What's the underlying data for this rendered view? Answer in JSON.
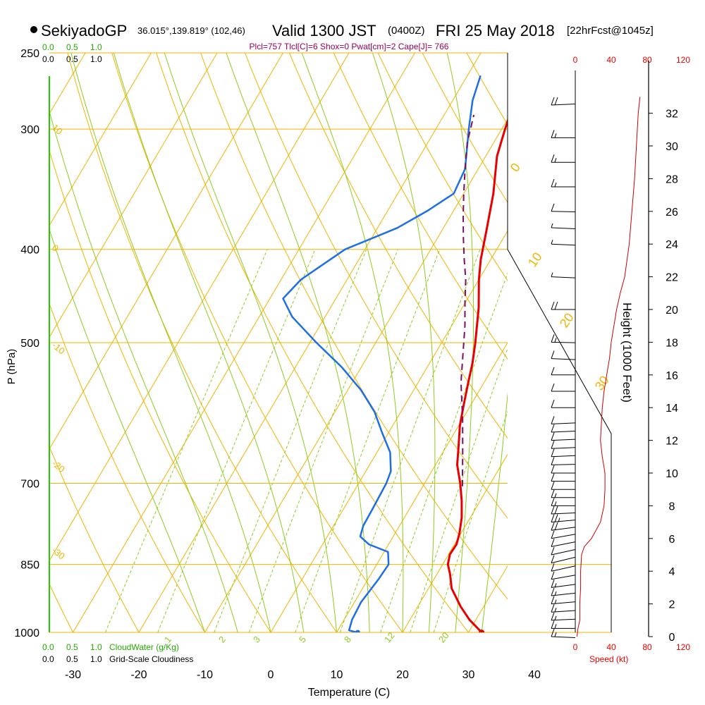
{
  "header": {
    "station": "SekiyadoGP",
    "coords": "36.015°,139.819° (102,46)",
    "valid_prefix": "Valid 1300 JST",
    "valid_utc": "(0400Z)",
    "valid_date": "FRI 25 May 2018",
    "forecast": "[22hrFcst@1045z]",
    "params": "Plcl=757 Tlcl[C]=6 Shox=0 Pwat[cm]=2 Cape[J]= 766"
  },
  "scales": {
    "cloudwater_ticks": [
      "0.0",
      "0.5",
      "1.0"
    ],
    "cloudiness_ticks": [
      "0.0",
      "0.5",
      "1.0"
    ],
    "cloudwater_label": "CloudWater (g/Kg)",
    "cloudiness_label": "Grid-Scale Cloudiness",
    "speed_ticks": [
      "0",
      "40",
      "80",
      "120"
    ],
    "speed_label": "Speed (kt)"
  },
  "colors": {
    "isotherm": "#f0b400",
    "dry_adiabat": "#f0b400",
    "moist_adiabat": "#8ccc1e",
    "mixing_ratio": "#8ccc1e",
    "temperature": "#e80000",
    "dewpoint": "#1e6ee6",
    "parcel": "#7a1060",
    "wind_speed": "#cc0000",
    "green_text": "#22aa00",
    "maroon_text": "#990055",
    "red_text": "#ee0000"
  },
  "chart_data": {
    "type": "line",
    "xlabel": "Temperature (C)",
    "ylabel": "P (hPa)",
    "y2label": "Height (1000 Feet)",
    "x_ticks": [
      "-30",
      "-20",
      "-10",
      "0",
      "10",
      "20",
      "30",
      "40"
    ],
    "pressure_levels": [
      "250",
      "300",
      "400",
      "500",
      "700",
      "850",
      "1000"
    ],
    "height_ticks": [
      "0",
      "2",
      "4",
      "6",
      "8",
      "10",
      "12",
      "14",
      "16",
      "18",
      "20",
      "22",
      "24",
      "26",
      "28",
      "30",
      "32"
    ],
    "dry_adiabat_labels": [
      "10",
      "0",
      "-10",
      "-20",
      "-30"
    ],
    "moist_adiabat_labels": [
      "0",
      "10",
      "20",
      "30"
    ],
    "mixing_ratio_labels": [
      "1",
      "2",
      "3",
      "5",
      "8",
      "12",
      "20"
    ],
    "series": [
      {
        "kind": "temperature",
        "points": [
          [
            32,
            1000
          ],
          [
            31,
            990
          ],
          [
            29,
            970
          ],
          [
            26.5,
            940
          ],
          [
            23.5,
            900
          ],
          [
            22,
            870
          ],
          [
            20.8,
            850
          ],
          [
            20.2,
            830
          ],
          [
            20.3,
            810
          ],
          [
            19.8,
            790
          ],
          [
            18.7,
            760
          ],
          [
            17.2,
            730
          ],
          [
            15.4,
            700
          ],
          [
            13.3,
            670
          ],
          [
            11.8,
            640
          ],
          [
            10.2,
            610
          ],
          [
            8.9,
            580
          ],
          [
            7.6,
            550
          ],
          [
            6.5,
            525
          ],
          [
            5.1,
            500
          ],
          [
            2.5,
            460
          ],
          [
            0,
            430
          ],
          [
            -1.5,
            410
          ],
          [
            -3.4,
            380
          ],
          [
            -5.5,
            350
          ],
          [
            -8.3,
            320
          ],
          [
            -9.5,
            300
          ],
          [
            -10.6,
            280
          ],
          [
            -10.8,
            264
          ]
        ]
      },
      {
        "kind": "dewpoint",
        "points": [
          [
            13,
            1000
          ],
          [
            11.7,
            995
          ],
          [
            11.2,
            970
          ],
          [
            11,
            930
          ],
          [
            11.6,
            880
          ],
          [
            11.8,
            850
          ],
          [
            10.6,
            825
          ],
          [
            7,
            810
          ],
          [
            5,
            795
          ],
          [
            4.5,
            775
          ],
          [
            4.4,
            745
          ],
          [
            4.2,
            700
          ],
          [
            3.8,
            680
          ],
          [
            2,
            650
          ],
          [
            -1,
            620
          ],
          [
            -4,
            590
          ],
          [
            -8,
            560
          ],
          [
            -13,
            530
          ],
          [
            -19,
            500
          ],
          [
            -25,
            470
          ],
          [
            -28,
            450
          ],
          [
            -27,
            430
          ],
          [
            -23,
            400
          ],
          [
            -17,
            380
          ],
          [
            -14,
            365
          ],
          [
            -11.5,
            350
          ],
          [
            -12,
            330
          ],
          [
            -15,
            300
          ],
          [
            -17,
            280
          ],
          [
            -18,
            264
          ]
        ]
      },
      {
        "kind": "parcel",
        "points": [
          [
            16,
            705
          ],
          [
            13,
            650
          ],
          [
            10,
            600
          ],
          [
            6.5,
            550
          ],
          [
            4,
            510
          ],
          [
            2,
            480
          ],
          [
            0,
            455
          ],
          [
            -2,
            430
          ],
          [
            -4,
            410
          ],
          [
            -6,
            390
          ],
          [
            -8,
            370
          ],
          [
            -10,
            350
          ],
          [
            -12,
            330
          ],
          [
            -13,
            320
          ],
          [
            -14,
            310
          ],
          [
            -15.5,
            290
          ]
        ]
      }
    ],
    "surface_temp_marker": [
      32,
      1000
    ],
    "surface_dewpoint_marker": [
      13.2,
      1000
    ],
    "winds": [
      {
        "h": 0,
        "dir": 90,
        "spd": 15
      },
      {
        "h": 0.5,
        "dir": 100,
        "spd": 15
      },
      {
        "h": 1,
        "dir": 110,
        "spd": 15
      },
      {
        "h": 1.5,
        "dir": 115,
        "spd": 15
      },
      {
        "h": 2,
        "dir": 120,
        "spd": 15
      },
      {
        "h": 2.5,
        "dir": 125,
        "spd": 15
      },
      {
        "h": 3,
        "dir": 130,
        "spd": 15
      },
      {
        "h": 3.5,
        "dir": 140,
        "spd": 10
      },
      {
        "h": 4,
        "dir": 150,
        "spd": 10
      },
      {
        "h": 4.5,
        "dir": 155,
        "spd": 10
      },
      {
        "h": 5,
        "dir": 150,
        "spd": 10
      },
      {
        "h": 5.5,
        "dir": 145,
        "spd": 10
      },
      {
        "h": 6,
        "dir": 140,
        "spd": 10
      },
      {
        "h": 6.5,
        "dir": 130,
        "spd": 20
      },
      {
        "h": 7,
        "dir": 120,
        "spd": 25
      },
      {
        "h": 7.5,
        "dir": 110,
        "spd": 20
      },
      {
        "h": 8,
        "dir": 100,
        "spd": 15
      },
      {
        "h": 8.5,
        "dir": 100,
        "spd": 15
      },
      {
        "h": 9,
        "dir": 100,
        "spd": 10
      },
      {
        "h": 9.5,
        "dir": 100,
        "spd": 10
      },
      {
        "h": 10,
        "dir": 100,
        "spd": 10
      },
      {
        "h": 10.5,
        "dir": 105,
        "spd": 10
      },
      {
        "h": 11,
        "dir": 110,
        "spd": 10
      },
      {
        "h": 11.5,
        "dir": 110,
        "spd": 10
      },
      {
        "h": 12,
        "dir": 110,
        "spd": 10
      },
      {
        "h": 12.5,
        "dir": 110,
        "spd": 10
      },
      {
        "h": 13,
        "dir": 110,
        "spd": 10
      },
      {
        "h": 14,
        "dir": 100,
        "spd": 10
      },
      {
        "h": 15,
        "dir": 100,
        "spd": 10
      },
      {
        "h": 16,
        "dir": 100,
        "spd": 10
      },
      {
        "h": 17,
        "dir": 90,
        "spd": 10
      },
      {
        "h": 18,
        "dir": 95,
        "spd": 15
      },
      {
        "h": 20,
        "dir": 100,
        "spd": 20
      },
      {
        "h": 22,
        "dir": 90,
        "spd": 5
      },
      {
        "h": 24,
        "dir": 90,
        "spd": 5
      },
      {
        "h": 25,
        "dir": 90,
        "spd": 5
      },
      {
        "h": 26,
        "dir": 95,
        "spd": 10
      },
      {
        "h": 27.5,
        "dir": 100,
        "spd": 15
      },
      {
        "h": 29,
        "dir": 100,
        "spd": 15
      },
      {
        "h": 30.5,
        "dir": 100,
        "spd": 15
      },
      {
        "h": 32.5,
        "dir": 110,
        "spd": 20
      }
    ],
    "wind_speed_profile": [
      [
        0,
        2
      ],
      [
        0.5,
        3
      ],
      [
        1,
        5
      ],
      [
        2,
        5
      ],
      [
        3,
        6
      ],
      [
        4,
        6
      ],
      [
        5,
        7
      ],
      [
        5.5,
        10
      ],
      [
        6,
        18
      ],
      [
        7,
        28
      ],
      [
        8,
        32
      ],
      [
        9,
        33
      ],
      [
        10,
        33
      ],
      [
        11,
        30
      ],
      [
        12,
        28
      ],
      [
        13,
        29
      ],
      [
        14,
        30
      ],
      [
        15,
        32
      ],
      [
        16,
        35
      ],
      [
        17,
        38
      ],
      [
        18,
        40
      ],
      [
        19,
        43
      ],
      [
        20,
        46
      ],
      [
        21,
        50
      ],
      [
        22,
        55
      ],
      [
        24,
        60
      ],
      [
        26,
        63
      ],
      [
        28,
        66
      ],
      [
        30,
        68
      ],
      [
        32,
        70
      ],
      [
        33,
        72
      ]
    ]
  }
}
